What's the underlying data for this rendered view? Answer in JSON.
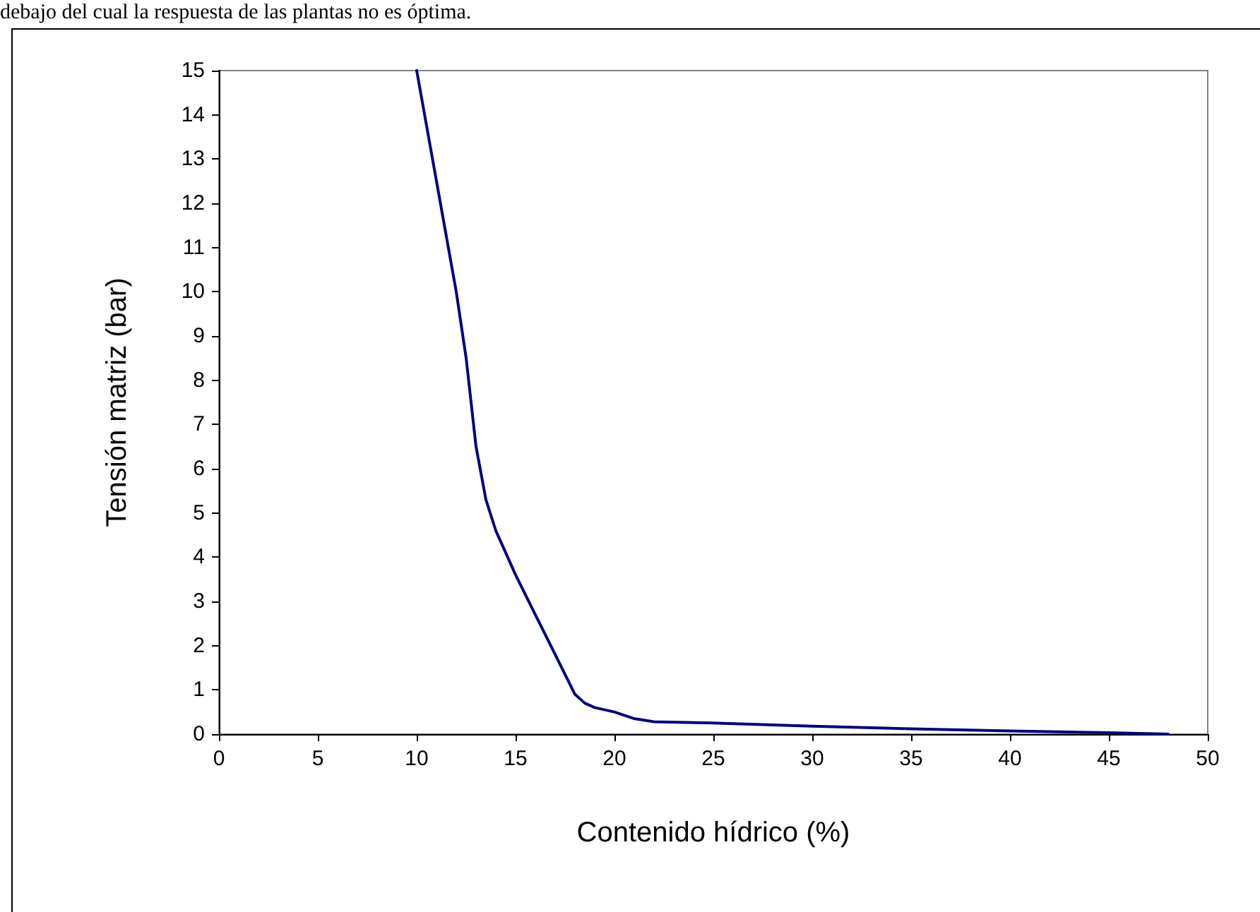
{
  "chart_data": {
    "type": "line",
    "annotations": [
      "debajo del cual la respuesta de las plantas no es óptima."
    ],
    "xlabel": "Contenido hídrico (%)",
    "ylabel": "Tensión matriz (bar)",
    "x": [
      10,
      11,
      12,
      12.5,
      13,
      13.5,
      14,
      15,
      16,
      17,
      18,
      18.5,
      19,
      20,
      21,
      22,
      25,
      30,
      35,
      40,
      45,
      48
    ],
    "series": [
      {
        "color": "#000080",
        "values": [
          15,
          12.5,
          10,
          8.5,
          6.5,
          5.3,
          4.6,
          3.6,
          2.7,
          1.8,
          0.9,
          0.7,
          0.6,
          0.5,
          0.35,
          0.28,
          0.25,
          0.18,
          0.12,
          0.07,
          0.03,
          0
        ]
      }
    ],
    "xlim": [
      0,
      50
    ],
    "xticks": [
      0,
      5,
      10,
      15,
      20,
      25,
      30,
      35,
      40,
      45,
      50
    ],
    "ylim": [
      0,
      15
    ],
    "yticks": [
      0,
      1,
      2,
      3,
      4,
      5,
      6,
      7,
      8,
      9,
      10,
      11,
      12,
      13,
      14,
      15
    ],
    "grid": false,
    "marker": "none",
    "line_style": "solid"
  }
}
